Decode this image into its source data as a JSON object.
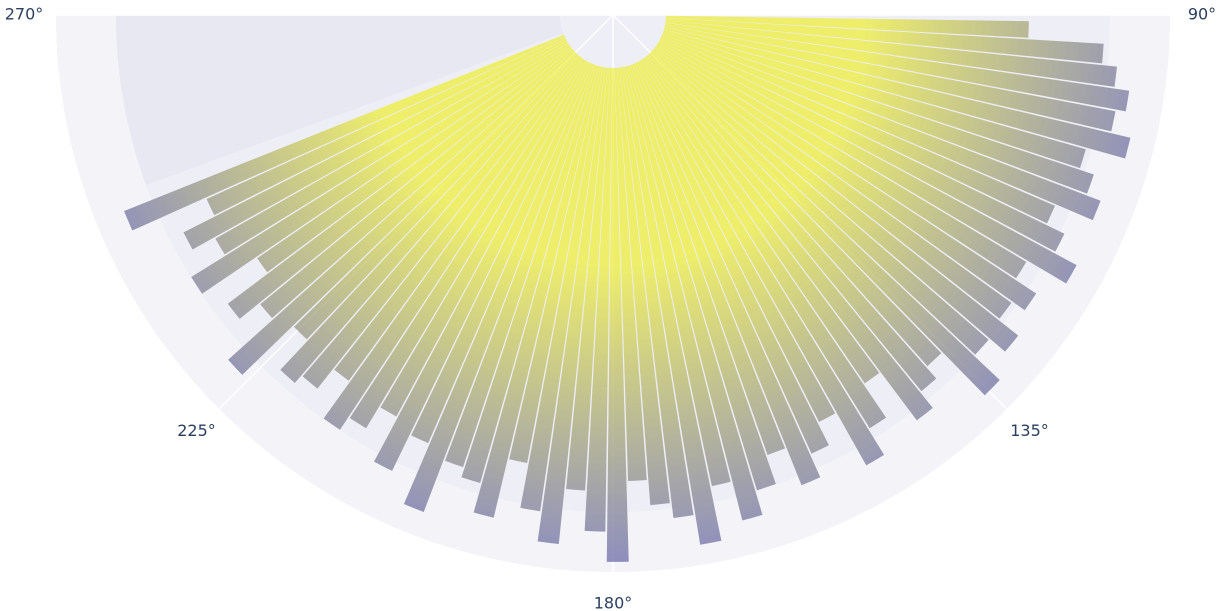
{
  "chart_data": {
    "type": "polar-bar",
    "theta": [
      92,
      94.5,
      97,
      99.5,
      102,
      104.5,
      107,
      109.5,
      112,
      114.5,
      117,
      119.5,
      122,
      124.5,
      127,
      129.5,
      132,
      134.5,
      137,
      139.5,
      142,
      144.5,
      147,
      149.5,
      152,
      154.5,
      157,
      159.5,
      162,
      164.5,
      167,
      169.5,
      172,
      174.5,
      177,
      179.5,
      182,
      184.5,
      187,
      189.5,
      192,
      194.5,
      197,
      199.5,
      202,
      204.5,
      207,
      209.5,
      212,
      214.5,
      217,
      219.5,
      222,
      224.5,
      227,
      229.5,
      232,
      234.5,
      237,
      239.5,
      242,
      244.5,
      247
    ],
    "values": [
      72,
      87,
      90,
      93,
      91,
      95,
      87,
      90,
      93,
      85,
      89,
      94,
      85,
      90,
      87,
      92,
      88,
      95,
      83,
      86,
      90,
      78,
      86,
      92,
      80,
      85,
      90,
      82,
      88,
      93,
      85,
      96,
      90,
      87,
      82,
      98,
      92,
      84,
      95,
      89,
      80,
      92,
      86,
      84,
      95,
      82,
      90,
      80,
      85,
      88,
      79,
      84,
      86,
      78,
      92,
      80,
      85,
      75,
      88,
      80,
      85,
      78,
      94
    ],
    "rlim": [
      0,
      100
    ],
    "thetalim": [
      90,
      270
    ],
    "thetaticks": [
      {
        "value": 270,
        "label": "270°"
      },
      {
        "value": 225,
        "label": "225°"
      },
      {
        "value": 180,
        "label": "180°"
      },
      {
        "value": 135,
        "label": "135°"
      },
      {
        "value": 90,
        "label": "90°"
      }
    ],
    "inner_color": "#eeee44",
    "outer_color": "#6d6db0",
    "grid": true
  }
}
